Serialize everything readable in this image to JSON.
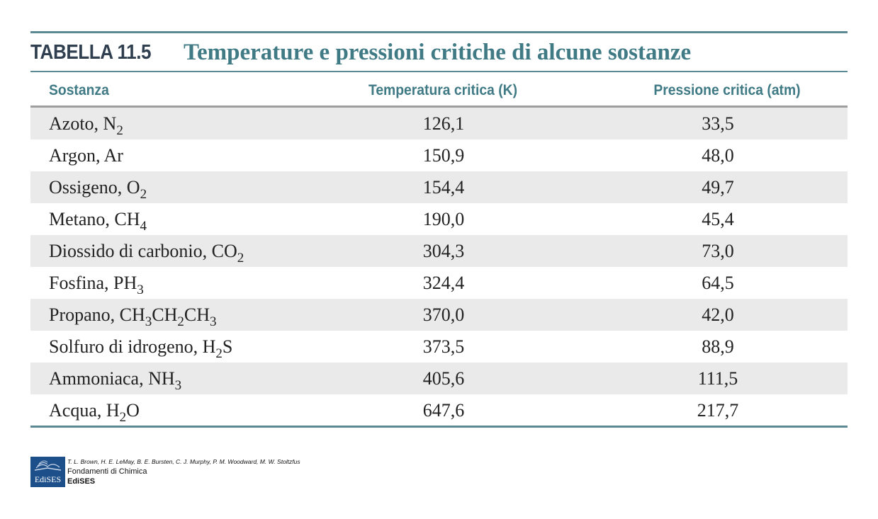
{
  "table": {
    "number_label": "TABELLA 11.5",
    "title": "Temperature e pressioni critiche di alcune sostanze",
    "columns": [
      "Sostanza",
      "Temperatura critica (K)",
      "Pressione critica (atm)"
    ],
    "rows": [
      {
        "name": "Azoto, N",
        "formula_sub": "2",
        "temp": "126,1",
        "pres": "33,5"
      },
      {
        "name": "Argon, Ar",
        "temp": "150,9",
        "pres": "48,0"
      },
      {
        "name": "Ossigeno, O",
        "formula_sub": "2",
        "temp": "154,4",
        "pres": "49,7"
      },
      {
        "name": "Metano, CH",
        "formula_sub": "4",
        "temp": "190,0",
        "pres": "45,4"
      },
      {
        "name": "Diossido di carbonio, CO",
        "formula_sub": "2",
        "temp": "304,3",
        "pres": "73,0"
      },
      {
        "name": "Fosfina, PH",
        "formula_sub": "3",
        "temp": "324,4",
        "pres": "64,5"
      },
      {
        "name": "Propano, CH",
        "formula_parts": [
          "3",
          "CH",
          "2",
          "CH",
          "3"
        ],
        "temp": "370,0",
        "pres": "42,0"
      },
      {
        "name": "Solfuro di idrogeno, H",
        "formula_parts": [
          "2",
          "S"
        ],
        "temp": "373,5",
        "pres": "88,9"
      },
      {
        "name": "Ammoniaca, NH",
        "formula_sub": "3",
        "temp": "405,6",
        "pres": "111,5"
      },
      {
        "name": "Acqua, H",
        "formula_parts": [
          "2",
          "O"
        ],
        "temp": "647,6",
        "pres": "217,7"
      }
    ]
  },
  "footer": {
    "logo_text": "EdiSES",
    "authors": "T. L. Brown, H. E. LeMay, B. E. Bursten, C. J. Murphy, P. M. Woodward, M. W. Stoltzfus",
    "book": "Fondamenti di Chimica",
    "publisher": "EdiSES"
  },
  "colors": {
    "accent": "#3f7a85",
    "rule": "#5b8a95",
    "shade": "#eaeaea",
    "logo_bg": "#1d4f8a"
  }
}
